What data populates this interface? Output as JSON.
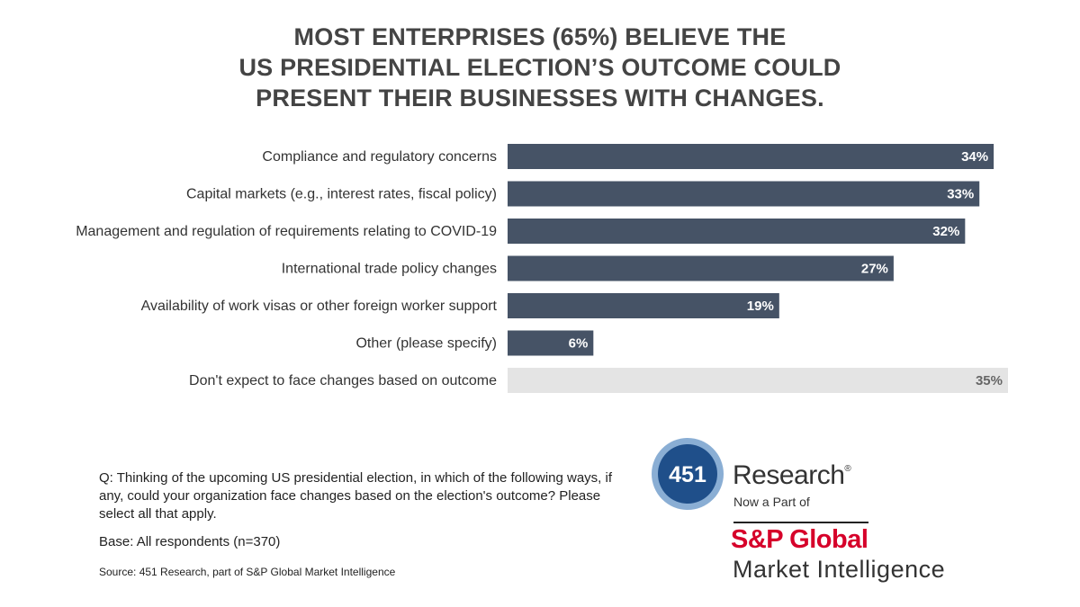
{
  "title_lines": [
    "MOST ENTERPRISES (65%) BELIEVE THE",
    "US PRESIDENTIAL ELECTION’S OUTCOME COULD",
    "PRESENT THEIR BUSINESSES WITH CHANGES."
  ],
  "chart_data": {
    "type": "bar",
    "orientation": "horizontal",
    "title": "MOST ENTERPRISES (65%) BELIEVE THE US PRESIDENTIAL ELECTION’S OUTCOME COULD PRESENT THEIR BUSINESSES WITH CHANGES.",
    "categories": [
      "Compliance and regulatory concerns",
      "Capital markets (e.g., interest rates, fiscal policy)",
      "Management and regulation of requirements relating to COVID-19",
      "International trade policy changes",
      "Availability of work visas or other foreign worker support",
      "Other (please specify)",
      "Don't expect to face changes based on outcome"
    ],
    "values": [
      34,
      33,
      32,
      27,
      19,
      6,
      35
    ],
    "value_labels": [
      "34%",
      "33%",
      "32%",
      "27%",
      "19%",
      "6%",
      "35%"
    ],
    "bar_colors": [
      "#465366",
      "#465366",
      "#465366",
      "#465366",
      "#465366",
      "#465366",
      "#e4e4e4"
    ],
    "label_colors": [
      "#ffffff",
      "#ffffff",
      "#ffffff",
      "#ffffff",
      "#ffffff",
      "#ffffff",
      "#666666"
    ],
    "xlim": [
      0,
      35
    ],
    "xlabel": "",
    "ylabel": "",
    "grid": false,
    "legend": "none"
  },
  "footer": {
    "question": "Q: Thinking of the upcoming US presidential election, in which of the following ways, if any, could your organization face changes based on the election's outcome? Please select all that apply.",
    "base": "Base: All respondents (n=370)",
    "source": "Source: 451 Research, part of S&P Global Market Intelligence"
  },
  "branding": {
    "logo_number": "451",
    "research": "Research",
    "trademark": "®",
    "now_part_of": "Now a Part of",
    "sp_global": "S&P Global",
    "market_intelligence": "Market Intelligence",
    "colors": {
      "circle_outer": "#2a6bb0",
      "circle_inner": "#1f4f8a",
      "sp_red": "#d6002a",
      "bar": "#465366",
      "bar_light": "#e4e4e4"
    }
  }
}
